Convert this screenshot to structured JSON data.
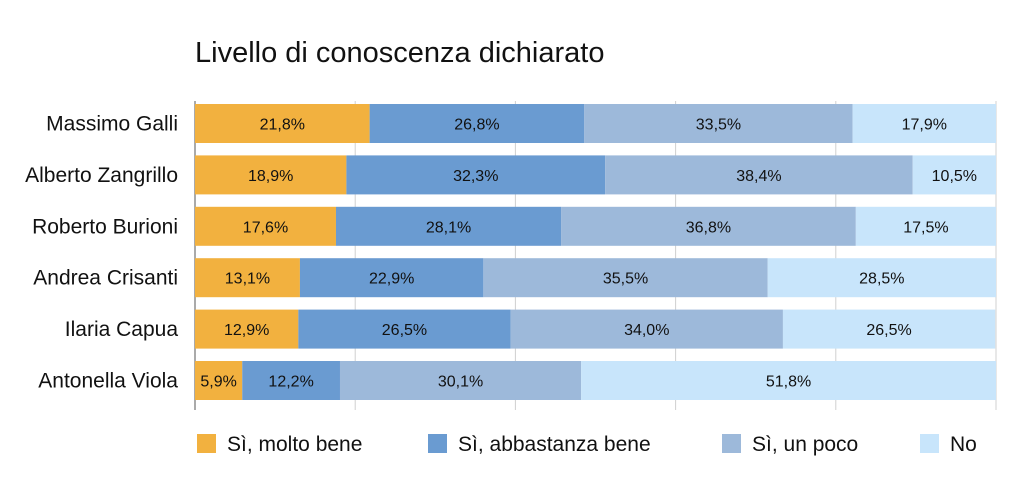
{
  "chart_data": {
    "type": "bar",
    "orientation": "horizontal",
    "stacked": true,
    "title": "Livello di conoscenza dichiarato",
    "xlim": [
      0,
      100
    ],
    "grid": true,
    "legend_position": "bottom",
    "categories": [
      "Massimo Galli",
      "Alberto Zangrillo",
      "Roberto Burioni",
      "Andrea Crisanti",
      "Ilaria Capua",
      "Antonella Viola"
    ],
    "series": [
      {
        "name": "Sì, molto bene",
        "color": "#F2B13F",
        "values": [
          21.8,
          18.9,
          17.6,
          13.1,
          12.9,
          5.9
        ],
        "labels": [
          "21,8%",
          "18,9%",
          "17,6%",
          "13,1%",
          "12,9%",
          "5,9%"
        ]
      },
      {
        "name": "Sì, abbastanza bene",
        "color": "#6A9BD1",
        "values": [
          26.8,
          32.3,
          28.1,
          22.9,
          26.5,
          12.2
        ],
        "labels": [
          "26,8%",
          "32,3%",
          "28,1%",
          "22,9%",
          "26,5%",
          "12,2%"
        ]
      },
      {
        "name": "Sì, un poco",
        "color": "#9DB9DA",
        "values": [
          33.5,
          38.4,
          36.8,
          35.5,
          34.0,
          30.1
        ],
        "labels": [
          "33,5%",
          "38,4%",
          "36,8%",
          "35,5%",
          "34,0%",
          "30,1%"
        ]
      },
      {
        "name": "No",
        "color": "#C8E5FB",
        "values": [
          17.9,
          10.5,
          17.5,
          28.5,
          26.5,
          51.8
        ],
        "labels": [
          "17,9%",
          "10,5%",
          "17,5%",
          "28,5%",
          "26,5%",
          "51,8%"
        ]
      }
    ]
  }
}
